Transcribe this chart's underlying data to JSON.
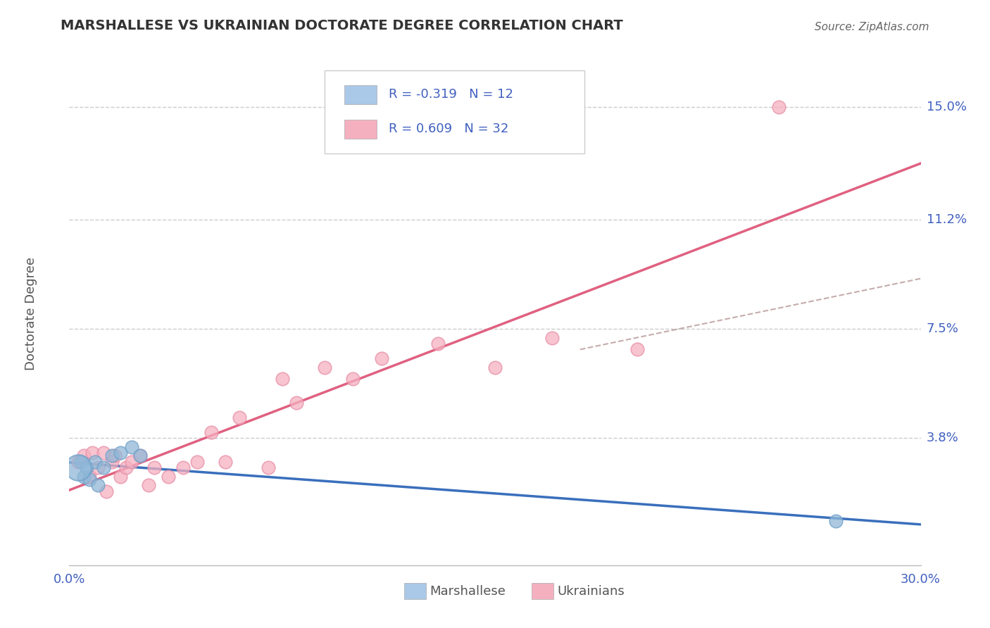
{
  "title": "MARSHALLESE VS UKRAINIAN DOCTORATE DEGREE CORRELATION CHART",
  "source": "Source: ZipAtlas.com",
  "ylabel": "Doctorate Degree",
  "xlim": [
    0.0,
    0.3
  ],
  "ylim": [
    -0.005,
    0.165
  ],
  "ytick_vals": [
    0.038,
    0.075,
    0.112,
    0.15
  ],
  "ytick_labels": [
    "3.8%",
    "7.5%",
    "11.2%",
    "15.0%"
  ],
  "xtick_vals": [
    0.0,
    0.05,
    0.1,
    0.15,
    0.2,
    0.25,
    0.3
  ],
  "xtick_labels": [
    "0.0%",
    "",
    "",
    "",
    "",
    "",
    "30.0%"
  ],
  "bottom_legend": [
    "Marshallese",
    "Ukrainians"
  ],
  "marshallese_x": [
    0.004,
    0.005,
    0.006,
    0.007,
    0.009,
    0.01,
    0.012,
    0.015,
    0.018,
    0.022,
    0.025,
    0.27
  ],
  "marshallese_y": [
    0.03,
    0.025,
    0.028,
    0.024,
    0.03,
    0.022,
    0.028,
    0.032,
    0.033,
    0.035,
    0.032,
    0.01
  ],
  "marshallese_big_x": [
    0.003
  ],
  "marshallese_big_y": [
    0.028
  ],
  "ukrainians_x": [
    0.003,
    0.005,
    0.007,
    0.008,
    0.01,
    0.012,
    0.013,
    0.015,
    0.016,
    0.018,
    0.02,
    0.022,
    0.025,
    0.028,
    0.03,
    0.035,
    0.04,
    0.045,
    0.05,
    0.055,
    0.06,
    0.07,
    0.075,
    0.08,
    0.09,
    0.1,
    0.11,
    0.13,
    0.15,
    0.17,
    0.2,
    0.25
  ],
  "ukrainians_y": [
    0.03,
    0.032,
    0.025,
    0.033,
    0.028,
    0.033,
    0.02,
    0.03,
    0.032,
    0.025,
    0.028,
    0.03,
    0.032,
    0.022,
    0.028,
    0.025,
    0.028,
    0.03,
    0.04,
    0.03,
    0.045,
    0.028,
    0.058,
    0.05,
    0.062,
    0.058,
    0.065,
    0.07,
    0.062,
    0.072,
    0.068,
    0.15
  ],
  "color_marshallese_fill": "#90b8d8",
  "color_marshallese_edge": "#70a0c8",
  "color_ukrainians_fill": "#f5b0c0",
  "color_ukrainians_edge": "#e890a8",
  "color_blue_line": "#3a6fbc",
  "color_pink_line": "#e06080",
  "color_dash_line": "#b89898",
  "color_grid": "#cccccc",
  "color_title": "#333333",
  "color_source": "#666666",
  "color_tick_right": "#4060c0",
  "color_tick_bottom": "#4060c0",
  "color_ylabel": "#555555",
  "bg_color": "#ffffff",
  "legend_fill_blue": "#aac8e8",
  "legend_fill_pink": "#f5b0c0",
  "legend_text1": "R = -0.319   N = 12",
  "legend_text2": "R = 0.609   N = 32"
}
